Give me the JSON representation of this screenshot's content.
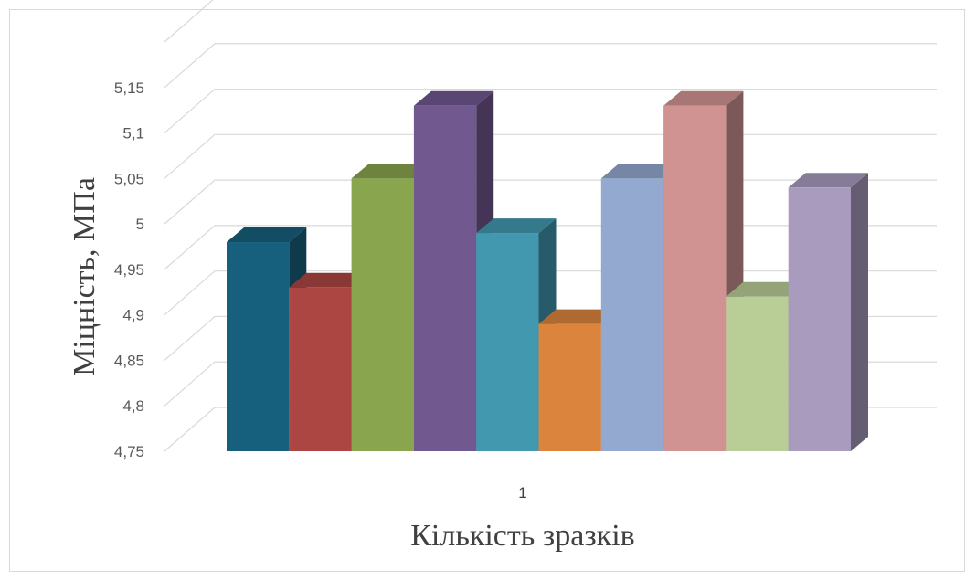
{
  "chart_data": {
    "type": "bar",
    "style": "3d-clustered-column",
    "categories": [
      "1"
    ],
    "series": [
      {
        "values": [
          4.98
        ],
        "color": "#17607d"
      },
      {
        "values": [
          4.93
        ],
        "color": "#ab4642"
      },
      {
        "values": [
          5.05
        ],
        "color": "#89a54e"
      },
      {
        "values": [
          5.13
        ],
        "color": "#71588f"
      },
      {
        "values": [
          4.99
        ],
        "color": "#4198af"
      },
      {
        "values": [
          4.89
        ],
        "color": "#db843d"
      },
      {
        "values": [
          5.05
        ],
        "color": "#93a9cf"
      },
      {
        "values": [
          5.13
        ],
        "color": "#d19392"
      },
      {
        "values": [
          4.92
        ],
        "color": "#b9cd96"
      },
      {
        "values": [
          5.04
        ],
        "color": "#a99bbd"
      }
    ],
    "xlabel": "Кількість  зразків",
    "ylabel": "Міцність, МПа",
    "ylim": [
      4.75,
      5.2
    ],
    "yticks": [
      "4,75",
      "4,8",
      "4,85",
      "4,9",
      "4,95",
      "5",
      "5,05",
      "5,1",
      "5,15"
    ],
    "grid": true,
    "legend": "none"
  }
}
